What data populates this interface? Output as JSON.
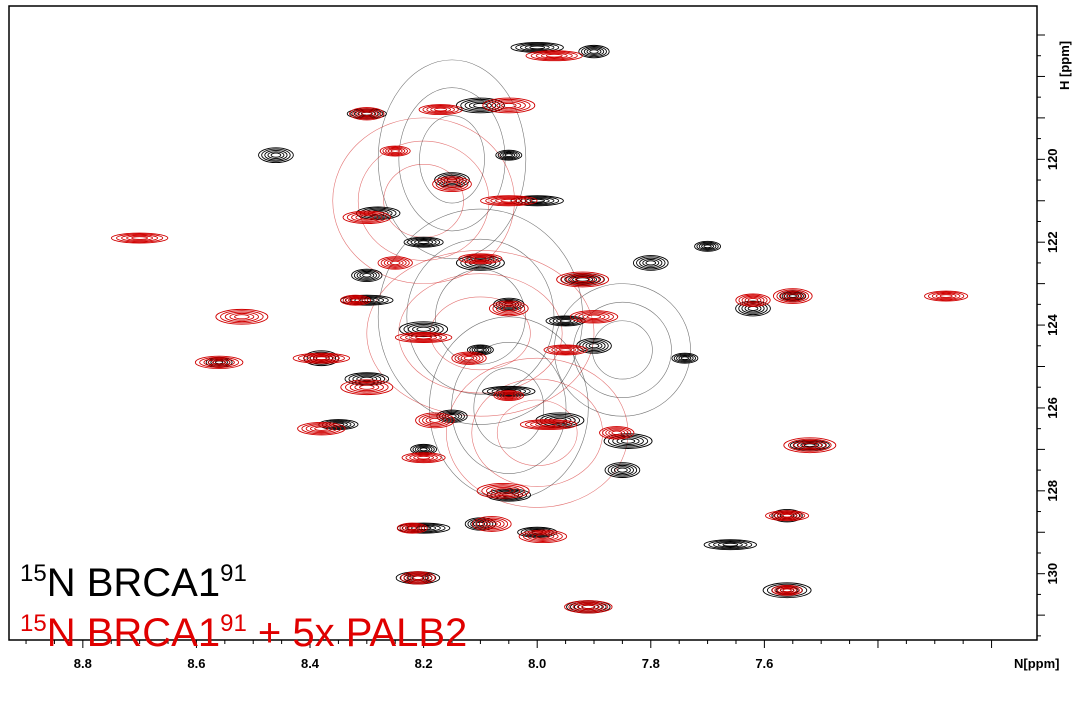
{
  "chart_data": {
    "type": "scatter",
    "subtype": "2D 1H-15N HSQC contour overlay",
    "x_axis": {
      "label": "N[ppm]",
      "lim": [
        8.93,
        7.12
      ],
      "reversed": true,
      "ticks": [
        8.8,
        8.6,
        8.4,
        8.2,
        8.0,
        7.8,
        7.6
      ]
    },
    "y_axis": {
      "label": "H [ppm]",
      "lim": [
        116.3,
        131.6
      ],
      "reversed": true,
      "ticks": [
        120,
        122,
        124,
        126,
        128,
        130
      ],
      "position": "right"
    },
    "colors": {
      "black_spectrum": "#000000",
      "red_spectrum": "#d00000"
    },
    "series": [
      {
        "name": "15N BRCA1 91",
        "color": "#000000",
        "points": [
          [
            8.56,
            124.9
          ],
          [
            8.38,
            124.8
          ],
          [
            8.21,
            130.1
          ],
          [
            7.66,
            129.3
          ],
          [
            7.56,
            128.6
          ],
          [
            7.52,
            126.9
          ],
          [
            7.56,
            130.4
          ],
          [
            7.55,
            123.3
          ],
          [
            8.46,
            119.9
          ],
          [
            7.91,
            130.8
          ],
          [
            8.0,
            117.3
          ],
          [
            7.9,
            117.4
          ],
          [
            8.3,
            118.9
          ],
          [
            8.1,
            118.7
          ],
          [
            8.05,
            119.9
          ],
          [
            8.15,
            120.5
          ],
          [
            8.28,
            121.3
          ],
          [
            8.0,
            121.0
          ],
          [
            8.3,
            122.8
          ],
          [
            8.2,
            122.0
          ],
          [
            8.1,
            122.5
          ],
          [
            7.7,
            122.1
          ],
          [
            7.8,
            122.5
          ],
          [
            7.92,
            122.9
          ],
          [
            8.3,
            123.4
          ],
          [
            8.05,
            123.5
          ],
          [
            7.95,
            123.9
          ],
          [
            8.2,
            124.1
          ],
          [
            8.1,
            124.6
          ],
          [
            7.9,
            124.5
          ],
          [
            8.3,
            125.3
          ],
          [
            8.05,
            125.6
          ],
          [
            8.15,
            126.2
          ],
          [
            8.35,
            126.4
          ],
          [
            7.96,
            126.3
          ],
          [
            8.2,
            127.0
          ],
          [
            7.85,
            127.5
          ],
          [
            8.05,
            128.1
          ],
          [
            8.2,
            128.9
          ],
          [
            8.1,
            128.8
          ],
          [
            8.0,
            129.0
          ],
          [
            7.84,
            126.8
          ],
          [
            7.74,
            124.8
          ],
          [
            7.62,
            123.6
          ]
        ]
      },
      {
        "name": "15N BRCA1 91 + 5x PALB2",
        "color": "#d00000",
        "points": [
          [
            8.56,
            124.9
          ],
          [
            8.38,
            124.8
          ],
          [
            8.21,
            130.1
          ],
          [
            7.56,
            128.6
          ],
          [
            7.52,
            126.9
          ],
          [
            7.56,
            130.4
          ],
          [
            7.55,
            123.3
          ],
          [
            7.91,
            130.8
          ],
          [
            7.97,
            117.5
          ],
          [
            8.3,
            118.9
          ],
          [
            8.17,
            118.8
          ],
          [
            8.05,
            118.7
          ],
          [
            8.25,
            119.8
          ],
          [
            8.15,
            120.6
          ],
          [
            8.3,
            121.4
          ],
          [
            8.05,
            121.0
          ],
          [
            8.25,
            122.5
          ],
          [
            8.1,
            122.4
          ],
          [
            7.92,
            122.9
          ],
          [
            8.32,
            123.4
          ],
          [
            8.05,
            123.6
          ],
          [
            7.9,
            123.8
          ],
          [
            8.2,
            124.3
          ],
          [
            8.12,
            124.8
          ],
          [
            7.95,
            124.6
          ],
          [
            8.3,
            125.5
          ],
          [
            8.05,
            125.7
          ],
          [
            8.18,
            126.3
          ],
          [
            8.38,
            126.5
          ],
          [
            7.98,
            126.4
          ],
          [
            7.86,
            126.6
          ],
          [
            8.2,
            127.2
          ],
          [
            8.06,
            128.0
          ],
          [
            8.22,
            128.9
          ],
          [
            8.08,
            128.8
          ],
          [
            7.99,
            129.1
          ],
          [
            8.7,
            121.9
          ],
          [
            7.62,
            123.4
          ],
          [
            7.28,
            123.3
          ],
          [
            8.52,
            123.8
          ]
        ]
      }
    ]
  },
  "legend": {
    "line1": {
      "iso": "15",
      "base": "N BRCA1",
      "sup": "91",
      "tail": ""
    },
    "line2": {
      "iso": "15",
      "base": "N BRCA1",
      "sup": "91",
      "tail": " + 5x PALB2"
    }
  }
}
